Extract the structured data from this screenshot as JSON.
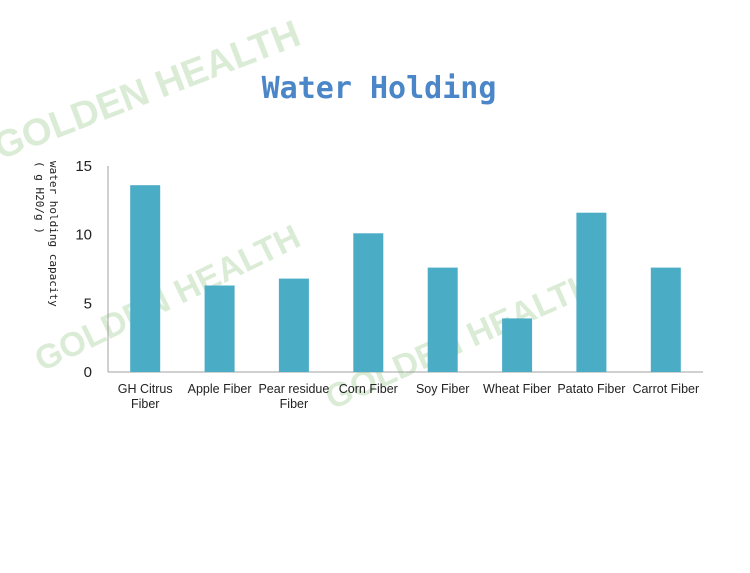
{
  "watermark": "GOLDEN HEALTH",
  "colors": {
    "bar": "#4bacc6",
    "title": "#4a86c8",
    "watermark": "#cfe6c9"
  },
  "chart_data": {
    "type": "bar",
    "title": "Water Holding",
    "ylabel_lines": [
      "water holding capacity",
      "( g H20/g )"
    ],
    "xlabel": "",
    "categories": [
      [
        "GH Citrus",
        "Fiber"
      ],
      [
        "Apple Fiber"
      ],
      [
        "Pear residue",
        "Fiber"
      ],
      [
        "Corn Fiber"
      ],
      [
        "Soy Fiber"
      ],
      [
        "Wheat Fiber"
      ],
      [
        "Patato Fiber"
      ],
      [
        "Carrot Fiber"
      ]
    ],
    "values": [
      13.6,
      6.3,
      6.8,
      10.1,
      7.6,
      3.9,
      11.6,
      7.6
    ],
    "yticks": [
      0,
      5,
      10,
      15
    ],
    "ylim": [
      0,
      15
    ],
    "grid": false,
    "legend": "none"
  }
}
